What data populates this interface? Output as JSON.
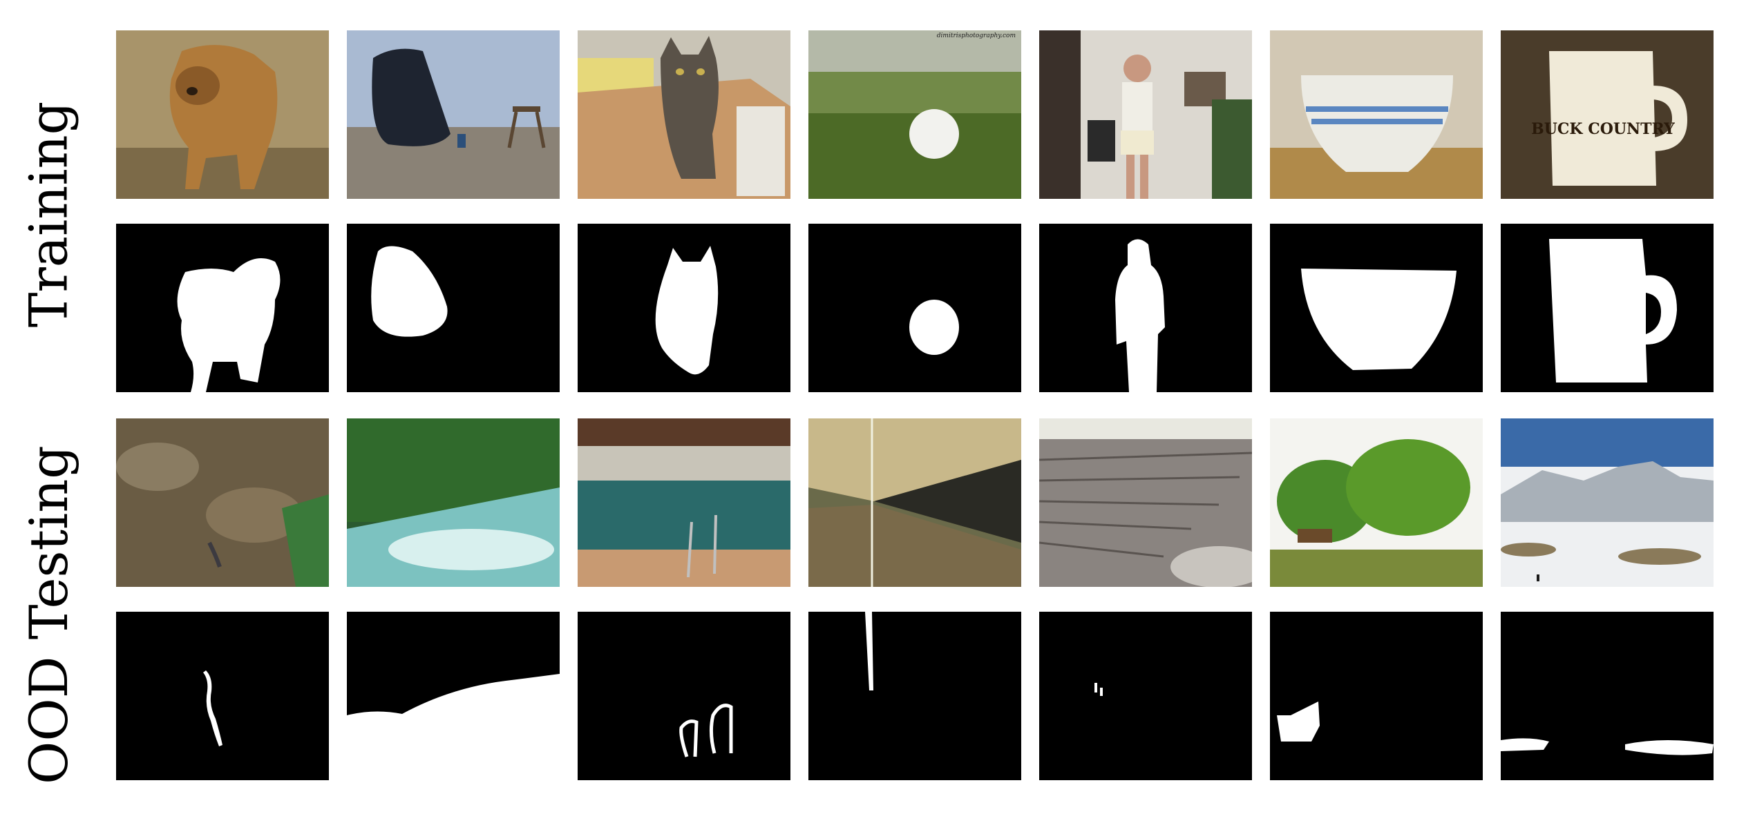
{
  "figure": {
    "row_labels": {
      "training": "Training",
      "ood_testing": "OOD Testing"
    },
    "training_images": [
      {
        "subject": "small brown dog on gravel"
      },
      {
        "subject": "dark submarine hull on land"
      },
      {
        "subject": "tabby cat on kitchen counter"
      },
      {
        "subject": "golf ball on grass",
        "watermark": "dimitrisphotography.com"
      },
      {
        "subject": "woman standing in living room"
      },
      {
        "subject": "white bowl with blue stripes"
      },
      {
        "subject": "white mug with print",
        "mug_text": "BUCK COUNTRY"
      }
    ],
    "training_masks": [
      {
        "object": "dog"
      },
      {
        "object": "submarine"
      },
      {
        "object": "cat"
      },
      {
        "object": "golf ball"
      },
      {
        "object": "person"
      },
      {
        "object": "bowl"
      },
      {
        "object": "mug"
      }
    ],
    "ood_images": [
      {
        "subject": "leaf litter forest floor"
      },
      {
        "subject": "river rapids in forest"
      },
      {
        "subject": "indoor swimming pool"
      },
      {
        "subject": "subway station platform"
      },
      {
        "subject": "stone amphitheater"
      },
      {
        "subject": "palm trees by water with boat"
      },
      {
        "subject": "snowy mountain landscape"
      }
    ],
    "ood_masks": [
      {
        "object": "thin snake-like shape"
      },
      {
        "object": "water region"
      },
      {
        "object": "pool ladder rails"
      },
      {
        "object": "thin vertical light line"
      },
      {
        "object": "small people"
      },
      {
        "object": "boat"
      },
      {
        "object": "snow patches"
      }
    ]
  }
}
